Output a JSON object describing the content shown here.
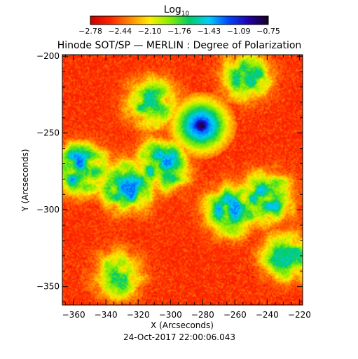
{
  "colorbar": {
    "label_base": "Log",
    "label_sub": "10",
    "ticks": [
      "-2.78",
      "-2.44",
      "-2.10",
      "-1.76",
      "-1.43",
      "-1.09",
      "-0.75"
    ],
    "range": [
      -2.78,
      -0.75
    ],
    "colormap": [
      "#cc0000",
      "#ff2200",
      "#ff8800",
      "#ffee00",
      "#88ee00",
      "#00cc66",
      "#00ccff",
      "#0044ff",
      "#2200aa",
      "#150020"
    ]
  },
  "chart_data": {
    "type": "heatmap",
    "title": "Hinode SOT/SP — MERLIN : Degree of Polarization",
    "xlabel": "X (Arcseconds)",
    "ylabel": "Y (Arcseconds)",
    "xlim": [
      -367,
      -218
    ],
    "ylim": [
      -362,
      -199
    ],
    "xticks": [
      -360,
      -340,
      -320,
      -300,
      -280,
      -260,
      -240,
      -220
    ],
    "yticks": [
      -200,
      -250,
      -300,
      -350
    ],
    "xtick_labels": [
      "−360",
      "−340",
      "−320",
      "−300",
      "−280",
      "−260",
      "−240",
      "−220"
    ],
    "ytick_labels": [
      "−200",
      "−250",
      "−300",
      "−350"
    ],
    "value_unit": "log10 degree of polarization",
    "background_level": -2.6,
    "features": [
      {
        "kind": "sunspot",
        "x": -281,
        "y": -245,
        "peak": -0.8
      },
      {
        "kind": "network",
        "x": -356,
        "y": -273,
        "peak": -1.3
      },
      {
        "kind": "network",
        "x": -326,
        "y": -285,
        "peak": -1.3
      },
      {
        "kind": "network",
        "x": -305,
        "y": -271,
        "peak": -1.3
      },
      {
        "kind": "network",
        "x": -262,
        "y": -300,
        "peak": -1.35
      },
      {
        "kind": "network",
        "x": -240,
        "y": -292,
        "peak": -1.45
      },
      {
        "kind": "network",
        "x": -312,
        "y": -230,
        "peak": -1.6
      },
      {
        "kind": "network",
        "x": -253,
        "y": -213,
        "peak": -1.6
      },
      {
        "kind": "network",
        "x": -333,
        "y": -343,
        "peak": -1.7
      },
      {
        "kind": "network",
        "x": -228,
        "y": -331,
        "peak": -1.6
      }
    ]
  },
  "footer": {
    "timestamp": "24-Oct-2017 22:00:06.043"
  }
}
